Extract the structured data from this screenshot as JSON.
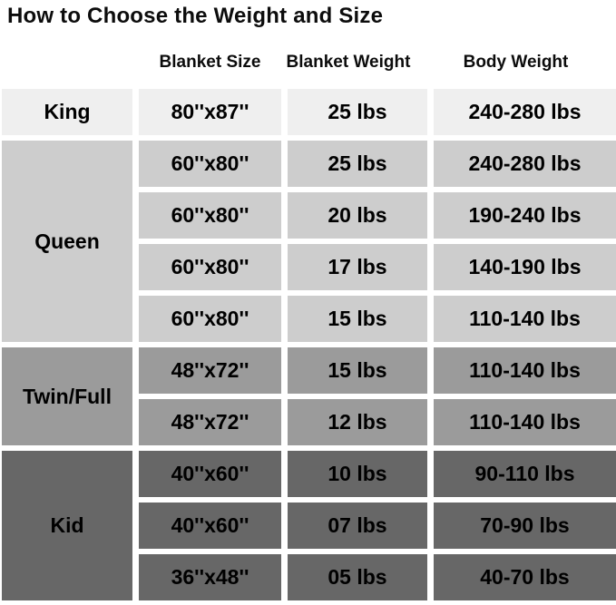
{
  "title": "How to Choose the Weight and Size",
  "columns": [
    "Blanket Size",
    "Blanket Weight",
    "Body Weight"
  ],
  "colors": {
    "background": "#ffffff",
    "text": "#000000",
    "king": "#efefef",
    "queen": "#cdcdcd",
    "twin_full": "#9b9b9b",
    "kid": "#676767"
  },
  "sections": [
    {
      "label": "King",
      "rows": [
        {
          "size": "80''x87''",
          "weight": "25 lbs",
          "body": "240-280 lbs"
        }
      ]
    },
    {
      "label": "Queen",
      "rows": [
        {
          "size": "60''x80''",
          "weight": "25 lbs",
          "body": "240-280 lbs"
        },
        {
          "size": "60''x80''",
          "weight": "20 lbs",
          "body": "190-240 lbs"
        },
        {
          "size": "60''x80''",
          "weight": "17 lbs",
          "body": "140-190 lbs"
        },
        {
          "size": "60''x80''",
          "weight": "15 lbs",
          "body": "110-140 lbs"
        }
      ]
    },
    {
      "label": "Twin/Full",
      "rows": [
        {
          "size": "48''x72''",
          "weight": "15 lbs",
          "body": "110-140 lbs"
        },
        {
          "size": "48''x72''",
          "weight": "12 lbs",
          "body": "110-140 lbs"
        }
      ]
    },
    {
      "label": "Kid",
      "rows": [
        {
          "size": "40''x60''",
          "weight": "10 lbs",
          "body": "90-110 lbs"
        },
        {
          "size": "40''x60''",
          "weight": "07 lbs",
          "body": "70-90 lbs"
        },
        {
          "size": "36''x48''",
          "weight": "05 lbs",
          "body": "40-70 lbs"
        }
      ]
    }
  ],
  "chart_data": {
    "type": "table",
    "title": "How to Choose the Weight and Size",
    "columns": [
      "",
      "Blanket Size",
      "Blanket Weight",
      "Body Weight"
    ],
    "rows": [
      [
        "King",
        "80''x87''",
        "25 lbs",
        "240-280 lbs"
      ],
      [
        "Queen",
        "60''x80''",
        "25 lbs",
        "240-280 lbs"
      ],
      [
        "Queen",
        "60''x80''",
        "20 lbs",
        "190-240 lbs"
      ],
      [
        "Queen",
        "60''x80''",
        "17 lbs",
        "140-190 lbs"
      ],
      [
        "Queen",
        "60''x80''",
        "15 lbs",
        "110-140 lbs"
      ],
      [
        "Twin/Full",
        "48''x72''",
        "15 lbs",
        "110-140 lbs"
      ],
      [
        "Twin/Full",
        "48''x72''",
        "12 lbs",
        "110-140 lbs"
      ],
      [
        "Kid",
        "40''x60''",
        "10 lbs",
        "90-110 lbs"
      ],
      [
        "Kid",
        "40''x60''",
        "07 lbs",
        "70-90 lbs"
      ],
      [
        "Kid",
        "36''x48''",
        "05 lbs",
        "40-70 lbs"
      ]
    ]
  }
}
